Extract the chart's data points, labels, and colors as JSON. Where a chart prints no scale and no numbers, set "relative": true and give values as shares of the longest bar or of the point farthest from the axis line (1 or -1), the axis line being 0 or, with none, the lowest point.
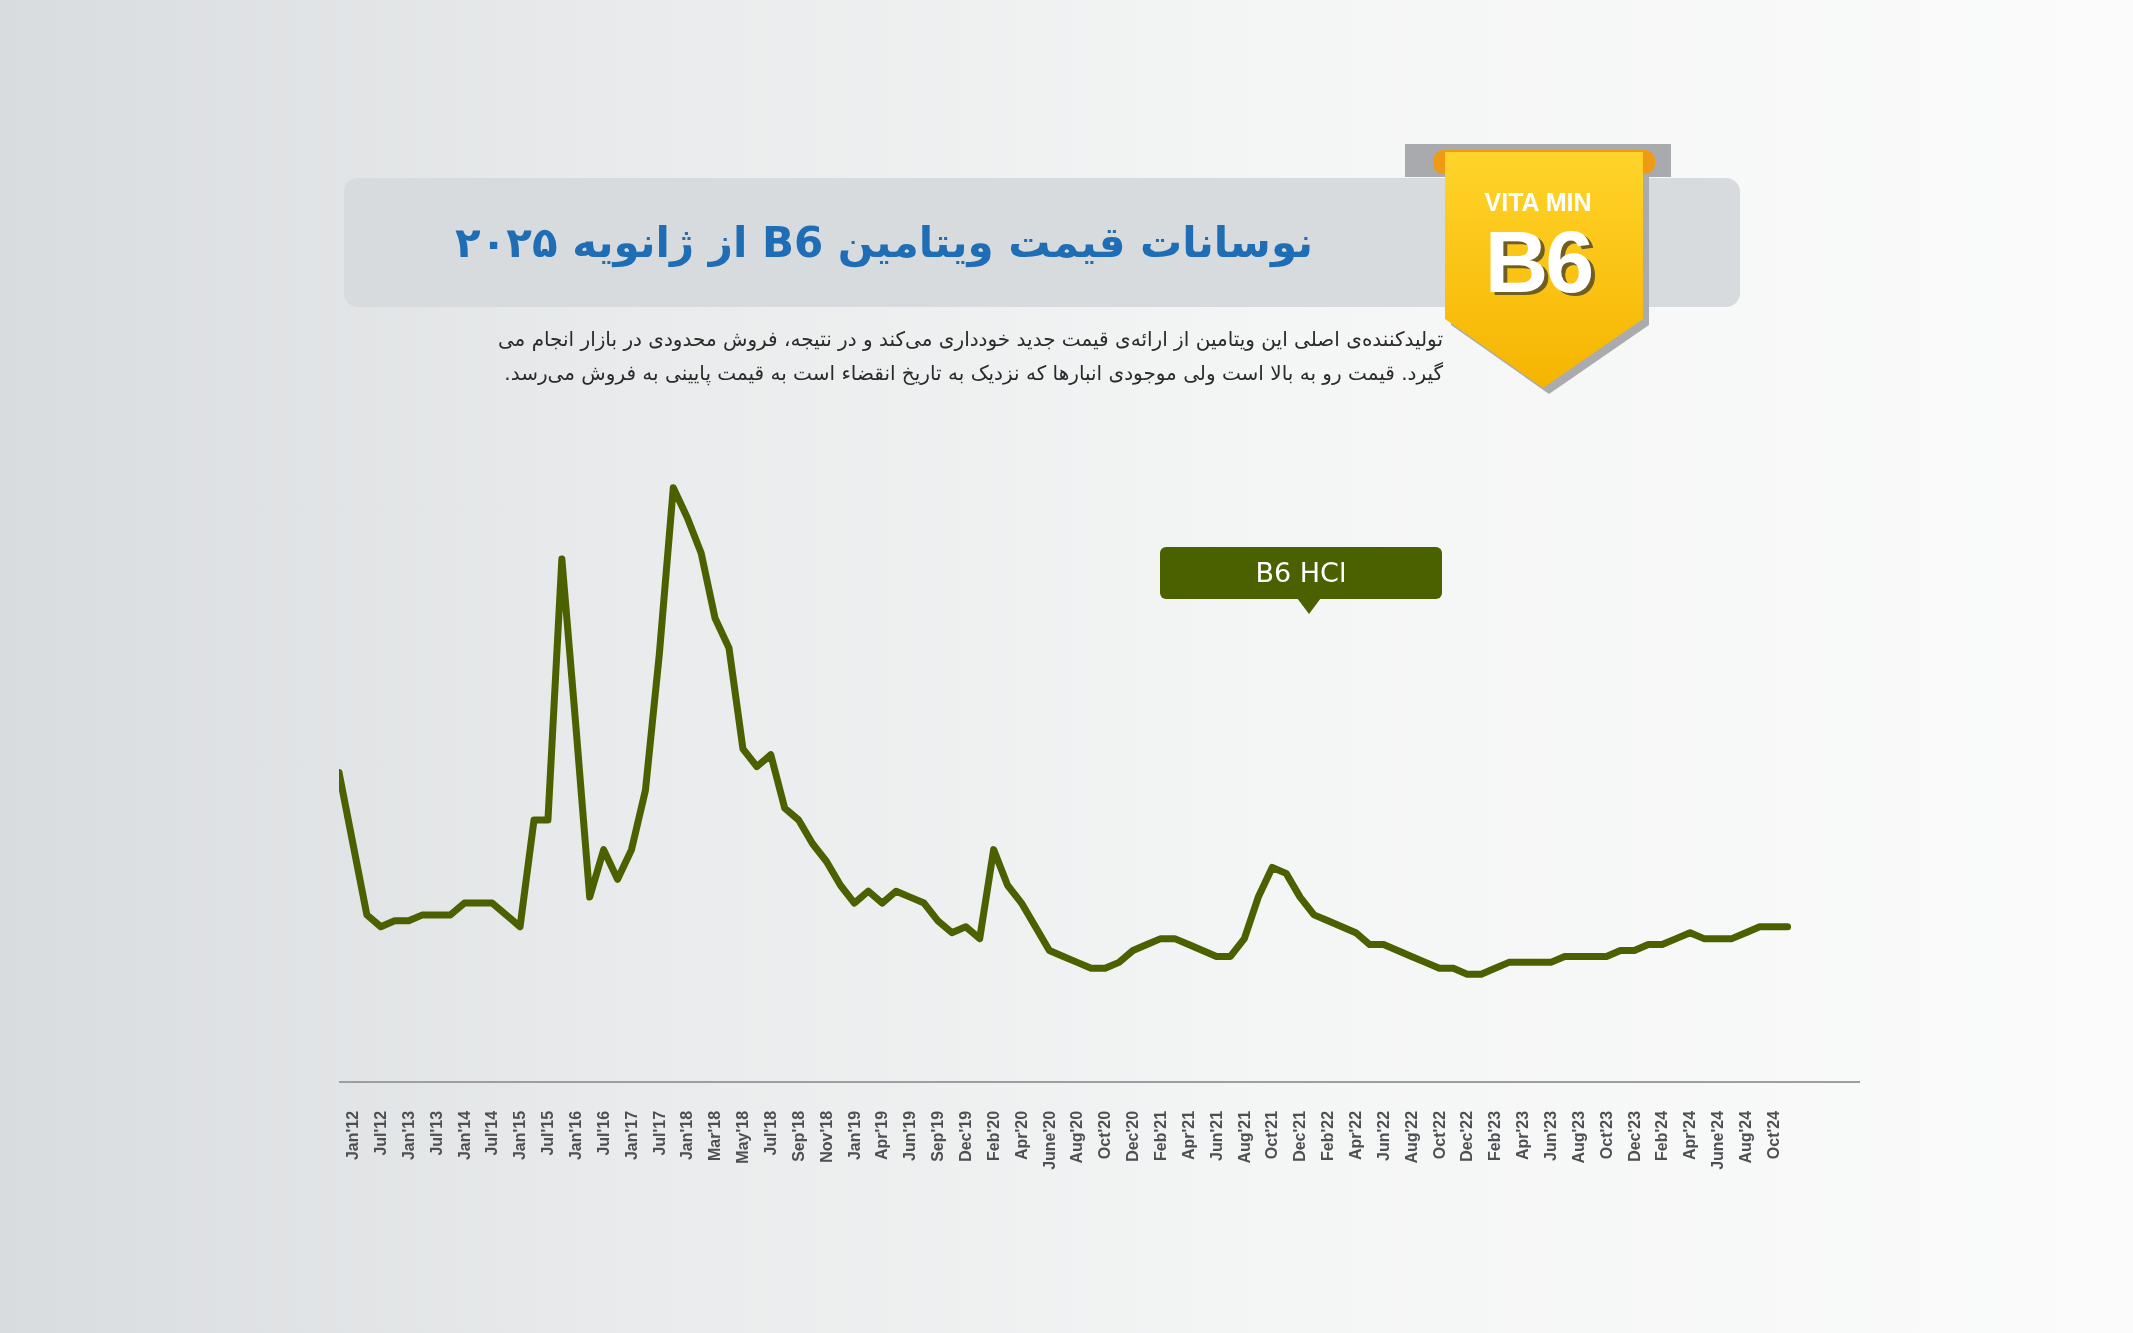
{
  "chart_data": {
    "type": "line",
    "title": "نوسانات قیمت ویتامین B6 از ژانویه ۲۰۲۵",
    "subtitle": "تولیدکننده‌ی اصلی این ویتامین از ارائه‌ی قیمت جدید خودداری می‌کند و در نتیجه، فروش محدودی در بازار انجام می گیرد. قیمت رو به بالا است ولی موجودی انبارها که نزدیک به تاریخ انقضاء است به قیمت پایینی به فروش می‌رسد.",
    "annotations": [
      "VITA MIN",
      "B6"
    ],
    "categories": [
      null,
      "Jan'12",
      null,
      "Jul'12",
      null,
      "Jan'13",
      null,
      "Jul'13",
      null,
      "Jan'14",
      null,
      "Jul'14",
      null,
      "Jan'15",
      null,
      "Jul'15",
      null,
      "Jan'16",
      null,
      "Jul'16",
      null,
      "Jan'17",
      null,
      "Jul'17",
      null,
      "Jan'18",
      null,
      "Mar'18",
      null,
      "May'18",
      null,
      "Jul'18",
      null,
      "Sep'18",
      null,
      "Nov'18",
      null,
      "Jan'19",
      null,
      "Apr'19",
      null,
      "Jun'19",
      null,
      "Sep'19",
      null,
      "Dec'19",
      null,
      "Feb'20",
      null,
      "Apr'20",
      null,
      "June'20",
      null,
      "Aug'20",
      null,
      "Oct'20",
      null,
      "Dec'20",
      null,
      "Feb'21",
      null,
      "Apr'21",
      null,
      "Jun'21",
      null,
      "Aug'21",
      null,
      "Oct'21",
      null,
      "Dec'21",
      null,
      "Feb'22",
      null,
      "Apr'22",
      null,
      "Jun'22",
      null,
      "Aug'22",
      null,
      "Oct'22",
      null,
      "Dec'22",
      null,
      "Feb'23",
      null,
      "Apr'23",
      null,
      "Jun'23",
      null,
      "Aug'23",
      null,
      "Oct'23",
      null,
      "Dec'23",
      null,
      "Feb'24",
      null,
      "Apr'24",
      null,
      "June'24",
      null,
      "Aug'24",
      null,
      "Oct'24",
      null
    ],
    "relative": true,
    "line_style": "solid",
    "series": [
      {
        "name": "B6 HCl",
        "color": "#4b6100",
        "values": [
          0.52,
          0.4,
          0.28,
          0.26,
          0.27,
          0.27,
          0.28,
          0.28,
          0.28,
          0.3,
          0.3,
          0.3,
          0.28,
          0.26,
          0.44,
          0.44,
          0.88,
          0.6,
          0.31,
          0.39,
          0.34,
          0.39,
          0.49,
          0.72,
          1.0,
          0.95,
          0.89,
          0.78,
          0.73,
          0.56,
          0.53,
          0.55,
          0.46,
          0.44,
          0.4,
          0.37,
          0.33,
          0.3,
          0.32,
          0.3,
          0.32,
          0.31,
          0.3,
          0.27,
          0.25,
          0.26,
          0.24,
          0.39,
          0.33,
          0.3,
          0.26,
          0.22,
          0.21,
          0.2,
          0.19,
          0.19,
          0.2,
          0.22,
          0.23,
          0.24,
          0.24,
          0.23,
          0.22,
          0.21,
          0.21,
          0.24,
          0.31,
          0.36,
          0.35,
          0.31,
          0.28,
          0.27,
          0.26,
          0.25,
          0.23,
          0.23,
          0.22,
          0.21,
          0.2,
          0.19,
          0.19,
          0.18,
          0.18,
          0.19,
          0.2,
          0.2,
          0.2,
          0.2,
          0.21,
          0.21,
          0.21,
          0.21,
          0.22,
          0.22,
          0.23,
          0.23,
          0.24,
          0.25,
          0.24,
          0.24,
          0.24,
          0.25,
          0.26,
          0.26,
          0.26
        ]
      }
    ]
  }
}
